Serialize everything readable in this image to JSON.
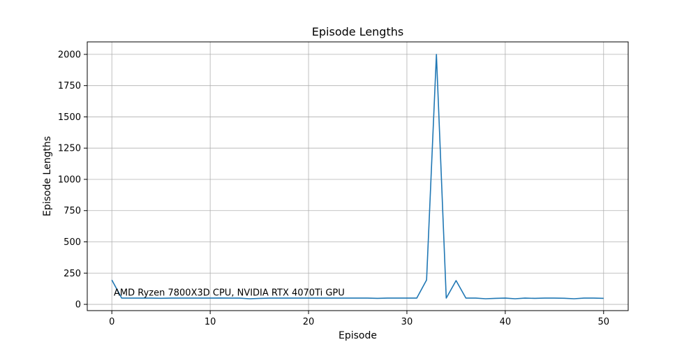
{
  "chart_data": {
    "type": "line",
    "title": "Episode Lengths",
    "xlabel": "Episode",
    "ylabel": "Episode Lengths",
    "xlim": [
      -2.5,
      52.5
    ],
    "ylim": [
      -50,
      2100
    ],
    "xticks": [
      0,
      10,
      20,
      30,
      40,
      50
    ],
    "yticks": [
      0,
      250,
      500,
      750,
      1000,
      1250,
      1500,
      1750,
      2000
    ],
    "grid": true,
    "line_color": "#1f77b4",
    "annotation": {
      "text": "AMD Ryzen 7800X3D CPU, NVIDIA RTX 4070Ti GPU",
      "x": 0.2,
      "y": 70
    },
    "series": [
      {
        "x": [
          0,
          1,
          2,
          3,
          4,
          5,
          6,
          7,
          8,
          9,
          10,
          11,
          12,
          13,
          14,
          15,
          16,
          17,
          18,
          19,
          20,
          21,
          22,
          23,
          24,
          25,
          26,
          27,
          28,
          29,
          30,
          31,
          32,
          33,
          34,
          35,
          36,
          37,
          38,
          39,
          40,
          41,
          42,
          43,
          44,
          45,
          46,
          47,
          48,
          49,
          50
        ],
        "values": [
          195,
          50,
          50,
          50,
          50,
          49,
          50,
          50,
          50,
          50,
          50,
          51,
          50,
          50,
          45,
          48,
          50,
          50,
          50,
          50,
          50,
          50,
          50,
          50,
          50,
          50,
          50,
          48,
          50,
          50,
          50,
          50,
          195,
          2000,
          50,
          190,
          50,
          50,
          45,
          48,
          50,
          45,
          50,
          48,
          50,
          50,
          49,
          45,
          50,
          50,
          48
        ]
      }
    ]
  }
}
